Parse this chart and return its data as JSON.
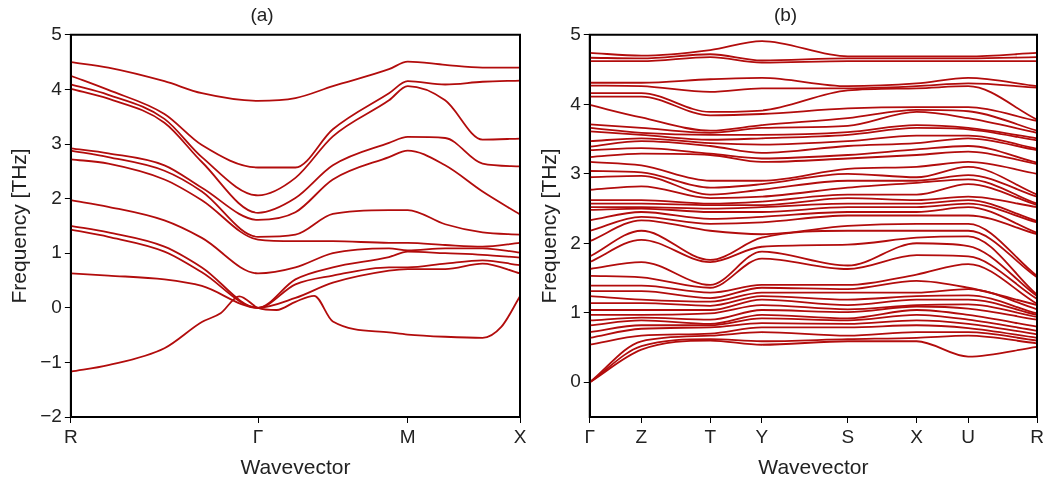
{
  "chart_data": [
    {
      "type": "line",
      "title": "(a)",
      "xlabel": "Wavevector",
      "ylabel": "Frequency [THz]",
      "color": "#b20c0c",
      "grid": false,
      "legend": false,
      "marker": "none",
      "line_style": "solid",
      "categories": [
        "R",
        null,
        null,
        null,
        null,
        null,
        null,
        null,
        null,
        null,
        "Γ",
        null,
        null,
        null,
        null,
        null,
        null,
        null,
        "M",
        null,
        null,
        null,
        null,
        null,
        "X"
      ],
      "ylim": [
        -2,
        5
      ],
      "yticks": [
        {
          "value": -2,
          "label": "−2"
        },
        {
          "value": -1,
          "label": "−1"
        },
        0,
        1,
        2,
        3,
        4,
        5
      ],
      "series": [
        {
          "values": [
            4.5,
            null,
            4.4,
            null,
            null,
            4.15,
            null,
            3.93,
            null,
            null,
            3.79,
            null,
            3.84,
            null,
            4.06,
            null,
            null,
            4.37,
            4.51,
            null,
            4.45,
            null,
            4.4,
            null,
            4.4
          ]
        },
        {
          "values": [
            4.25,
            null,
            3.99,
            null,
            null,
            3.55,
            null,
            2.98,
            null,
            null,
            2.57,
            null,
            2.57,
            null,
            3.27,
            null,
            null,
            3.93,
            4.15,
            null,
            4.09,
            null,
            4.14,
            null,
            4.16
          ]
        },
        {
          "values": [
            4.09,
            null,
            3.9,
            null,
            null,
            3.46,
            null,
            2.76,
            null,
            null,
            2.06,
            null,
            2.38,
            null,
            3.14,
            null,
            null,
            3.8,
            4.06,
            null,
            3.8,
            null,
            3.08,
            null,
            3.1
          ]
        },
        {
          "values": [
            4.01,
            null,
            3.83,
            null,
            null,
            3.39,
            null,
            2.67,
            null,
            null,
            1.74,
            null,
            2.01,
            null,
            2.61,
            null,
            null,
            3.02,
            3.13,
            null,
            3.11,
            null,
            2.64,
            null,
            2.59
          ]
        },
        {
          "values": [
            2.92,
            null,
            2.83,
            null,
            null,
            2.61,
            null,
            2.2,
            null,
            null,
            1.61,
            null,
            1.75,
            null,
            2.35,
            null,
            null,
            2.76,
            2.88,
            null,
            2.61,
            null,
            2.13,
            null,
            1.71
          ]
        },
        {
          "values": [
            2.88,
            null,
            2.76,
            null,
            null,
            2.51,
            null,
            2.13,
            null,
            null,
            1.3,
            null,
            1.34,
            null,
            1.72,
            null,
            null,
            1.79,
            1.79,
            null,
            1.53,
            null,
            1.38,
            null,
            1.34
          ]
        },
        {
          "values": [
            2.72,
            null,
            2.64,
            null,
            null,
            2.35,
            null,
            1.97,
            null,
            null,
            1.25,
            null,
            1.22,
            null,
            1.22,
            null,
            null,
            1.19,
            1.19,
            null,
            1.15,
            null,
            1.12,
            null,
            1.19
          ]
        },
        {
          "values": [
            1.97,
            null,
            1.85,
            null,
            null,
            1.6,
            null,
            1.28,
            null,
            null,
            0.63,
            null,
            0.74,
            null,
            1.0,
            null,
            null,
            1.09,
            1.05,
            null,
            1.09,
            null,
            1.09,
            null,
            1.01
          ]
        },
        {
          "values": [
            1.5,
            null,
            1.38,
            null,
            null,
            1.12,
            null,
            0.74,
            null,
            null,
            0,
            null,
            0.52,
            null,
            0.74,
            null,
            null,
            0.93,
            1.03,
            null,
            1.0,
            null,
            0.97,
            null,
            0.92
          ]
        },
        {
          "values": [
            1.43,
            null,
            1.3,
            null,
            null,
            1.03,
            null,
            0.65,
            null,
            null,
            0,
            null,
            0.43,
            null,
            0.59,
            null,
            null,
            0.74,
            0.74,
            null,
            0.81,
            null,
            0.87,
            null,
            0.78
          ]
        },
        {
          "values": [
            0.63,
            null,
            0.59,
            null,
            null,
            0.52,
            null,
            0.4,
            null,
            null,
            0,
            null,
            0.18,
            null,
            0.46,
            null,
            null,
            0.68,
            0.71,
            null,
            0.71,
            null,
            0.81,
            null,
            0.63
          ]
        },
        {
          "values": [
            -1.17,
            null,
            -1.05,
            null,
            null,
            -0.74,
            null,
            -0.26,
            -0.1,
            0.21,
            0,
            -0.04,
            0.11,
            0.22,
            -0.25,
            null,
            null,
            -0.45,
            -0.49,
            null,
            -0.53,
            null,
            -0.55,
            -0.35,
            0.21
          ]
        }
      ]
    },
    {
      "type": "line",
      "title": "(b)",
      "xlabel": "Wavevector",
      "ylabel": "Frequency [THz]",
      "color": "#b20c0c",
      "grid": false,
      "legend": false,
      "marker": "none",
      "line_style": "solid",
      "categories": [
        "Γ",
        null,
        null,
        "Z",
        null,
        null,
        null,
        "T",
        null,
        null,
        "Y",
        null,
        null,
        null,
        null,
        "S",
        null,
        null,
        null,
        "X",
        null,
        null,
        "U",
        null,
        null,
        null,
        "R"
      ],
      "ylim": [
        -0.5,
        5
      ],
      "yticks": [
        0,
        1,
        2,
        3,
        4,
        5
      ],
      "series": [
        {
          "values": [
            4.74,
            null,
            null,
            4.7,
            null,
            null,
            null,
            4.78,
            null,
            null,
            4.91,
            null,
            null,
            null,
            null,
            4.69,
            null,
            null,
            null,
            4.69,
            null,
            null,
            4.69,
            null,
            null,
            null,
            4.74
          ]
        },
        {
          "values": [
            4.67,
            null,
            null,
            4.66,
            null,
            null,
            null,
            4.72,
            null,
            null,
            4.63,
            null,
            null,
            null,
            null,
            4.66,
            null,
            null,
            null,
            4.66,
            null,
            null,
            4.66,
            null,
            null,
            null,
            4.68
          ]
        },
        {
          "values": [
            4.62,
            null,
            null,
            4.62,
            null,
            null,
            null,
            4.68,
            null,
            null,
            4.6,
            null,
            null,
            null,
            null,
            4.62,
            null,
            null,
            null,
            4.62,
            null,
            null,
            4.62,
            null,
            null,
            null,
            4.62
          ]
        },
        {
          "values": [
            4.31,
            null,
            null,
            4.31,
            null,
            null,
            null,
            4.36,
            null,
            null,
            4.38,
            null,
            null,
            null,
            null,
            4.26,
            null,
            null,
            null,
            4.3,
            null,
            null,
            4.38,
            null,
            null,
            null,
            4.26
          ]
        },
        {
          "values": [
            4.27,
            null,
            null,
            4.26,
            null,
            null,
            null,
            4.18,
            null,
            null,
            4.23,
            null,
            null,
            null,
            null,
            4.23,
            null,
            null,
            null,
            4.26,
            null,
            null,
            4.3,
            null,
            null,
            null,
            4.24
          ]
        },
        {
          "values": [
            4.16,
            null,
            null,
            4.16,
            null,
            null,
            null,
            3.89,
            null,
            null,
            3.91,
            null,
            null,
            null,
            null,
            4.2,
            null,
            null,
            null,
            4.23,
            null,
            null,
            4.26,
            null,
            null,
            null,
            3.78
          ]
        },
        {
          "values": [
            4.11,
            null,
            null,
            4.11,
            null,
            null,
            null,
            3.84,
            null,
            null,
            3.86,
            null,
            null,
            null,
            null,
            3.94,
            null,
            null,
            null,
            3.96,
            null,
            null,
            3.96,
            null,
            null,
            null,
            3.76
          ]
        },
        {
          "values": [
            3.99,
            null,
            null,
            3.81,
            null,
            null,
            null,
            3.62,
            null,
            null,
            3.7,
            null,
            null,
            null,
            null,
            3.8,
            null,
            null,
            null,
            3.92,
            null,
            null,
            3.9,
            null,
            null,
            null,
            3.62
          ]
        },
        {
          "values": [
            3.71,
            null,
            null,
            3.66,
            null,
            null,
            null,
            3.59,
            null,
            null,
            3.66,
            null,
            null,
            null,
            null,
            3.69,
            null,
            null,
            null,
            3.89,
            null,
            null,
            3.8,
            null,
            null,
            null,
            3.59
          ]
        },
        {
          "values": [
            3.66,
            null,
            null,
            3.59,
            null,
            null,
            null,
            3.56,
            null,
            null,
            3.56,
            null,
            null,
            null,
            null,
            3.6,
            null,
            null,
            null,
            3.7,
            null,
            null,
            3.66,
            null,
            null,
            null,
            3.51
          ]
        },
        {
          "values": [
            3.61,
            null,
            null,
            3.56,
            null,
            null,
            null,
            3.49,
            null,
            null,
            3.51,
            null,
            null,
            null,
            null,
            3.56,
            null,
            null,
            null,
            3.66,
            null,
            null,
            3.64,
            null,
            null,
            null,
            3.48
          ]
        },
        {
          "values": [
            3.47,
            null,
            null,
            3.51,
            null,
            null,
            null,
            3.44,
            null,
            null,
            3.42,
            null,
            null,
            null,
            null,
            3.47,
            null,
            null,
            null,
            3.55,
            null,
            null,
            3.55,
            null,
            null,
            null,
            3.36
          ]
        },
        {
          "values": [
            3.39,
            null,
            null,
            3.47,
            null,
            null,
            null,
            3.4,
            null,
            null,
            3.3,
            null,
            null,
            null,
            null,
            3.4,
            null,
            null,
            null,
            3.44,
            null,
            null,
            3.51,
            null,
            null,
            null,
            3.34
          ]
        },
        {
          "values": [
            3.34,
            null,
            null,
            3.37,
            null,
            null,
            null,
            3.29,
            null,
            null,
            3.22,
            null,
            null,
            null,
            null,
            3.27,
            null,
            null,
            null,
            3.35,
            null,
            null,
            3.4,
            null,
            null,
            null,
            3.16
          ]
        },
        {
          "values": [
            3.24,
            null,
            null,
            3.29,
            null,
            null,
            null,
            3.27,
            null,
            null,
            3.17,
            null,
            null,
            null,
            null,
            3.22,
            null,
            null,
            null,
            3.27,
            null,
            null,
            3.32,
            null,
            null,
            null,
            3.14
          ]
        },
        {
          "values": [
            3.17,
            null,
            null,
            3.12,
            null,
            null,
            null,
            2.9,
            null,
            null,
            2.9,
            null,
            null,
            null,
            null,
            3.07,
            null,
            null,
            null,
            3.1,
            null,
            null,
            3.17,
            null,
            null,
            null,
            3.0
          ]
        },
        {
          "values": [
            3.04,
            null,
            null,
            3.02,
            null,
            null,
            null,
            2.8,
            null,
            null,
            2.85,
            null,
            null,
            null,
            null,
            3.0,
            null,
            null,
            null,
            2.95,
            null,
            null,
            3.1,
            null,
            null,
            null,
            2.7
          ]
        },
        {
          "values": [
            2.95,
            null,
            null,
            2.97,
            null,
            null,
            null,
            2.7,
            null,
            null,
            2.77,
            null,
            null,
            null,
            null,
            2.9,
            null,
            null,
            null,
            2.9,
            null,
            null,
            2.98,
            null,
            null,
            null,
            2.67
          ]
        },
        {
          "values": [
            2.77,
            null,
            null,
            2.82,
            null,
            null,
            null,
            2.65,
            null,
            null,
            2.67,
            null,
            null,
            null,
            null,
            2.8,
            null,
            null,
            null,
            2.87,
            null,
            null,
            2.92,
            null,
            null,
            null,
            2.57
          ]
        },
        {
          "values": [
            2.62,
            null,
            null,
            2.62,
            null,
            null,
            null,
            2.57,
            null,
            null,
            2.6,
            null,
            null,
            null,
            null,
            2.7,
            null,
            null,
            null,
            2.7,
            null,
            null,
            2.85,
            null,
            null,
            null,
            2.55
          ]
        },
        {
          "values": [
            2.57,
            null,
            null,
            2.57,
            null,
            null,
            null,
            2.55,
            null,
            null,
            2.55,
            null,
            null,
            null,
            null,
            2.65,
            null,
            null,
            null,
            2.62,
            null,
            null,
            2.67,
            null,
            null,
            null,
            2.52
          ]
        },
        {
          "values": [
            2.52,
            null,
            null,
            2.52,
            null,
            null,
            null,
            2.5,
            null,
            null,
            2.52,
            null,
            null,
            null,
            null,
            2.57,
            null,
            null,
            null,
            2.57,
            null,
            null,
            2.62,
            null,
            null,
            null,
            2.32
          ]
        },
        {
          "values": [
            2.48,
            null,
            null,
            2.5,
            null,
            null,
            null,
            2.45,
            null,
            null,
            2.45,
            null,
            null,
            null,
            null,
            2.52,
            null,
            null,
            null,
            2.52,
            null,
            null,
            2.57,
            null,
            null,
            null,
            2.3
          ]
        },
        {
          "values": [
            2.33,
            null,
            null,
            2.45,
            null,
            null,
            null,
            2.35,
            null,
            null,
            2.38,
            null,
            null,
            null,
            null,
            2.45,
            null,
            null,
            null,
            2.45,
            null,
            null,
            2.52,
            null,
            null,
            null,
            2.15
          ]
        },
        {
          "values": [
            2.18,
            null,
            null,
            2.38,
            null,
            null,
            null,
            2.28,
            null,
            null,
            2.3,
            null,
            null,
            null,
            null,
            2.4,
            null,
            null,
            null,
            2.4,
            null,
            null,
            2.4,
            null,
            null,
            null,
            2.13
          ]
        },
        {
          "values": [
            2.03,
            null,
            null,
            2.33,
            null,
            null,
            null,
            2.18,
            null,
            null,
            2.13,
            null,
            null,
            null,
            null,
            2.25,
            null,
            null,
            null,
            2.28,
            null,
            null,
            2.28,
            null,
            null,
            null,
            1.53
          ]
        },
        {
          "values": [
            1.81,
            null,
            null,
            2.18,
            null,
            null,
            null,
            1.76,
            null,
            null,
            2.08,
            null,
            null,
            null,
            null,
            2.18,
            null,
            null,
            null,
            2.18,
            null,
            null,
            2.18,
            null,
            null,
            null,
            1.51
          ]
        },
        {
          "values": [
            1.73,
            null,
            null,
            2.05,
            null,
            null,
            null,
            1.73,
            null,
            null,
            1.95,
            null,
            null,
            null,
            null,
            1.98,
            null,
            null,
            null,
            2.08,
            null,
            null,
            2.1,
            null,
            null,
            null,
            1.26
          ]
        },
        {
          "values": [
            1.63,
            null,
            null,
            1.73,
            null,
            null,
            null,
            1.4,
            null,
            null,
            1.88,
            null,
            null,
            null,
            null,
            1.68,
            null,
            null,
            null,
            2.0,
            null,
            null,
            1.96,
            null,
            null,
            null,
            1.24
          ]
        },
        {
          "values": [
            1.53,
            null,
            null,
            1.51,
            null,
            null,
            null,
            1.36,
            null,
            null,
            1.78,
            null,
            null,
            null,
            null,
            1.63,
            null,
            null,
            null,
            1.83,
            null,
            null,
            1.81,
            null,
            null,
            null,
            1.2
          ]
        },
        {
          "values": [
            1.39,
            null,
            null,
            1.39,
            null,
            null,
            null,
            1.29,
            null,
            null,
            1.4,
            null,
            null,
            null,
            null,
            1.4,
            null,
            null,
            null,
            1.55,
            null,
            null,
            1.7,
            null,
            null,
            null,
            1.13
          ]
        },
        {
          "values": [
            1.31,
            null,
            null,
            1.31,
            null,
            null,
            null,
            1.21,
            null,
            null,
            1.36,
            null,
            null,
            null,
            null,
            1.34,
            null,
            null,
            null,
            1.46,
            null,
            null,
            1.36,
            null,
            null,
            null,
            1.11
          ]
        },
        {
          "values": [
            1.24,
            null,
            null,
            1.19,
            null,
            null,
            null,
            1.16,
            null,
            null,
            1.29,
            null,
            null,
            null,
            null,
            1.29,
            null,
            null,
            null,
            1.29,
            null,
            null,
            1.34,
            null,
            null,
            null,
            1.05
          ]
        },
        {
          "values": [
            1.14,
            null,
            null,
            1.14,
            null,
            null,
            null,
            1.1,
            null,
            null,
            1.24,
            null,
            null,
            null,
            null,
            1.19,
            null,
            null,
            null,
            1.24,
            null,
            null,
            1.25,
            null,
            null,
            null,
            0.99
          ]
        },
        {
          "values": [
            1.04,
            null,
            null,
            1.04,
            null,
            null,
            null,
            1.04,
            null,
            null,
            1.19,
            null,
            null,
            null,
            null,
            1.11,
            null,
            null,
            null,
            1.19,
            null,
            null,
            1.19,
            null,
            null,
            null,
            0.97
          ]
        },
        {
          "values": [
            0.97,
            null,
            null,
            0.97,
            null,
            null,
            null,
            0.99,
            null,
            null,
            1.11,
            null,
            null,
            null,
            null,
            1.05,
            null,
            null,
            null,
            1.11,
            null,
            null,
            1.12,
            null,
            null,
            null,
            0.94
          ]
        },
        {
          "values": [
            0.89,
            null,
            null,
            0.93,
            null,
            null,
            null,
            0.9,
            null,
            null,
            1.04,
            null,
            null,
            null,
            null,
            1.01,
            null,
            null,
            null,
            1.09,
            null,
            null,
            1.06,
            null,
            null,
            null,
            0.9
          ]
        },
        {
          "values": [
            0.82,
            null,
            null,
            0.89,
            null,
            null,
            null,
            0.84,
            null,
            null,
            0.97,
            null,
            null,
            null,
            null,
            0.92,
            null,
            null,
            null,
            1.04,
            null,
            null,
            0.97,
            null,
            null,
            null,
            0.8
          ]
        },
        {
          "values": [
            0.72,
            null,
            null,
            0.82,
            null,
            null,
            null,
            0.82,
            null,
            null,
            0.92,
            null,
            null,
            null,
            null,
            0.89,
            null,
            null,
            null,
            0.97,
            null,
            null,
            0.9,
            null,
            null,
            null,
            0.74
          ]
        },
        {
          "values": [
            0.64,
            null,
            null,
            0.77,
            null,
            null,
            null,
            0.79,
            null,
            null,
            0.85,
            null,
            null,
            null,
            null,
            0.84,
            null,
            null,
            null,
            0.89,
            null,
            null,
            0.84,
            null,
            null,
            null,
            0.69
          ]
        },
        {
          "values": [
            0.54,
            null,
            null,
            0.67,
            null,
            null,
            null,
            0.7,
            null,
            null,
            0.79,
            null,
            null,
            null,
            null,
            0.79,
            null,
            null,
            null,
            0.82,
            null,
            null,
            0.78,
            null,
            null,
            null,
            0.64
          ]
        },
        {
          "values": [
            0,
            null,
            null,
            0.59,
            null,
            null,
            null,
            0.67,
            null,
            null,
            0.72,
            null,
            null,
            null,
            null,
            0.67,
            null,
            null,
            null,
            0.72,
            null,
            null,
            0.72,
            null,
            null,
            null,
            0.6
          ]
        },
        {
          "values": [
            0,
            null,
            null,
            0.52,
            null,
            null,
            null,
            0.62,
            null,
            null,
            0.59,
            null,
            null,
            null,
            null,
            0.62,
            null,
            null,
            null,
            0.64,
            null,
            null,
            0.67,
            null,
            null,
            null,
            0.56
          ]
        },
        {
          "values": [
            0,
            null,
            null,
            0.47,
            null,
            null,
            null,
            0.6,
            null,
            null,
            0.54,
            null,
            null,
            null,
            null,
            0.59,
            null,
            null,
            null,
            0.59,
            null,
            null,
            0.37,
            null,
            null,
            null,
            0.51
          ]
        }
      ]
    }
  ]
}
